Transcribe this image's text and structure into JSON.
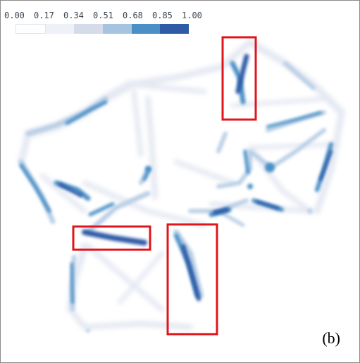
{
  "color_scale": {
    "ticks": [
      "0.00",
      "0.17",
      "0.34",
      "0.51",
      "0.68",
      "0.85",
      "1.00"
    ],
    "bins": [
      {
        "from": 0.0,
        "to": 0.17,
        "color": "#ffffff"
      },
      {
        "from": 0.17,
        "to": 0.34,
        "color": "#eef2f8"
      },
      {
        "from": 0.34,
        "to": 0.51,
        "color": "#d6dbea"
      },
      {
        "from": 0.51,
        "to": 0.68,
        "color": "#a5c4df"
      },
      {
        "from": 0.68,
        "to": 0.85,
        "color": "#4a8fc6"
      },
      {
        "from": 0.85,
        "to": 1.0,
        "color": "#2f5aa6"
      }
    ]
  },
  "panel_label": "(b)",
  "highlight_color": "#e0141b"
}
